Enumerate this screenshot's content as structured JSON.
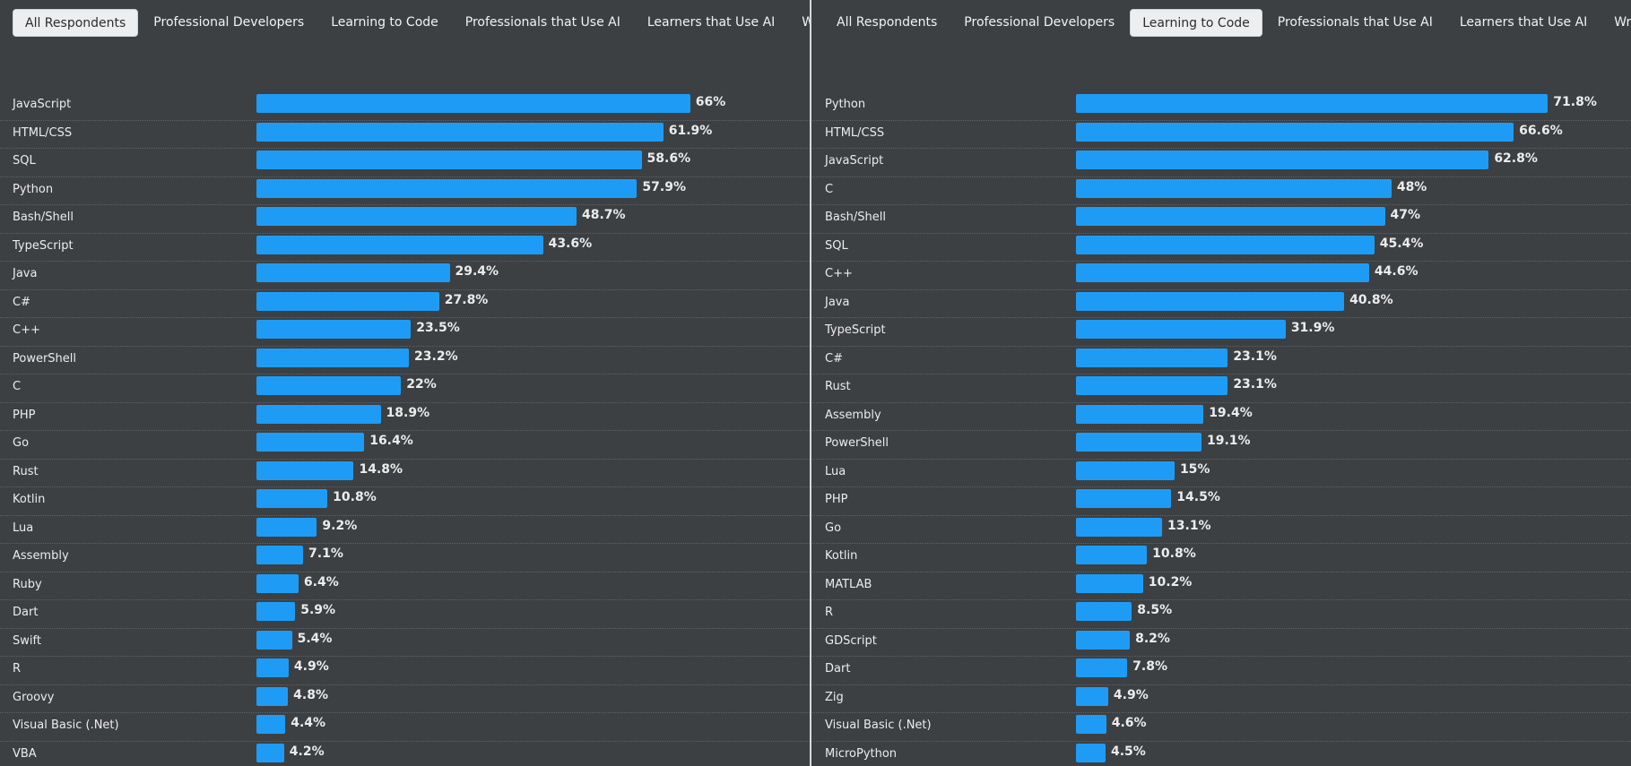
{
  "left_panel": {
    "tabs": [
      {
        "label": "All Respondents",
        "active": true
      },
      {
        "label": "Professional Developers",
        "active": false
      },
      {
        "label": "Learning to Code",
        "active": false
      },
      {
        "label": "Professionals that Use AI",
        "active": false
      },
      {
        "label": "Learners that Use AI",
        "active": false
      },
      {
        "label": "Write-Ins",
        "active": false
      }
    ]
  },
  "right_panel": {
    "tabs": [
      {
        "label": "All Respondents",
        "active": false
      },
      {
        "label": "Professional Developers",
        "active": false
      },
      {
        "label": "Learning to Code",
        "active": true
      },
      {
        "label": "Professionals that Use AI",
        "active": false
      },
      {
        "label": "Learners that Use AI",
        "active": false
      },
      {
        "label": "Write-Ins",
        "active": false
      }
    ]
  },
  "colors": {
    "bar": "#1e9cf5",
    "background": "#3c4043",
    "text": "#ececec"
  },
  "chart_data": [
    {
      "type": "bar",
      "orientation": "horizontal",
      "unit": "%",
      "categories": [
        "JavaScript",
        "HTML/CSS",
        "SQL",
        "Python",
        "Bash/Shell",
        "TypeScript",
        "Java",
        "C#",
        "C++",
        "PowerShell",
        "C",
        "PHP",
        "Go",
        "Rust",
        "Kotlin",
        "Lua",
        "Assembly",
        "Ruby",
        "Dart",
        "Swift",
        "R",
        "Groovy",
        "Visual Basic (.Net)",
        "VBA"
      ],
      "values": [
        66,
        61.9,
        58.6,
        57.9,
        48.7,
        43.6,
        29.4,
        27.8,
        23.5,
        23.2,
        22,
        18.9,
        16.4,
        14.8,
        10.8,
        9.2,
        7.1,
        6.4,
        5.9,
        5.4,
        4.9,
        4.8,
        4.4,
        4.2
      ],
      "labels": [
        "66%",
        "61.9%",
        "58.6%",
        "57.9%",
        "48.7%",
        "43.6%",
        "29.4%",
        "27.8%",
        "23.5%",
        "23.2%",
        "22%",
        "18.9%",
        "16.4%",
        "14.8%",
        "10.8%",
        "9.2%",
        "7.1%",
        "6.4%",
        "5.9%",
        "5.4%",
        "4.9%",
        "4.8%",
        "4.4%",
        "4.2%"
      ],
      "title": "",
      "xlabel": "",
      "ylabel": ""
    },
    {
      "type": "bar",
      "orientation": "horizontal",
      "unit": "%",
      "categories": [
        "Python",
        "HTML/CSS",
        "JavaScript",
        "C",
        "Bash/Shell",
        "SQL",
        "C++",
        "Java",
        "TypeScript",
        "C#",
        "Rust",
        "Assembly",
        "PowerShell",
        "Lua",
        "PHP",
        "Go",
        "Kotlin",
        "MATLAB",
        "R",
        "GDScript",
        "Dart",
        "Zig",
        "Visual Basic (.Net)",
        "MicroPython"
      ],
      "values": [
        71.8,
        66.6,
        62.8,
        48,
        47,
        45.4,
        44.6,
        40.8,
        31.9,
        23.1,
        23.1,
        19.4,
        19.1,
        15,
        14.5,
        13.1,
        10.8,
        10.2,
        8.5,
        8.2,
        7.8,
        4.9,
        4.6,
        4.5
      ],
      "labels": [
        "71.8%",
        "66.6%",
        "62.8%",
        "48%",
        "47%",
        "45.4%",
        "44.6%",
        "40.8%",
        "31.9%",
        "23.1%",
        "23.1%",
        "19.4%",
        "19.1%",
        "15%",
        "14.5%",
        "13.1%",
        "10.8%",
        "10.2%",
        "8.5%",
        "8.2%",
        "7.8%",
        "4.9%",
        "4.6%",
        "4.5%"
      ],
      "title": "",
      "xlabel": "",
      "ylabel": ""
    }
  ]
}
